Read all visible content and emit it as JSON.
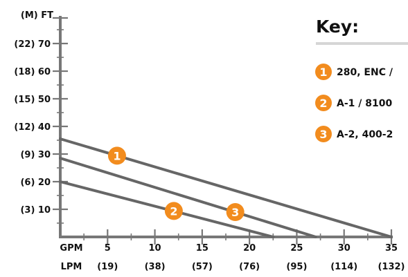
{
  "chart_data": {
    "type": "line",
    "x_axis": {
      "unit_primary": "GPM",
      "unit_secondary": "LPM",
      "range": [
        0,
        35
      ],
      "ticks": [
        {
          "gpm": "5",
          "lpm": "(19)"
        },
        {
          "gpm": "10",
          "lpm": "(38)"
        },
        {
          "gpm": "15",
          "lpm": "(57)"
        },
        {
          "gpm": "20",
          "lpm": "(76)"
        },
        {
          "gpm": "25",
          "lpm": "(95)"
        },
        {
          "gpm": "30",
          "lpm": "(114)"
        },
        {
          "gpm": "35",
          "lpm": "(132)"
        }
      ]
    },
    "y_axis": {
      "unit_label": "(M) FT",
      "range": [
        0,
        80
      ],
      "labeled_ticks": [
        {
          "value": 10,
          "label": "(3) 10"
        },
        {
          "value": 20,
          "label": "(6) 20"
        },
        {
          "value": 30,
          "label": "(9) 30"
        },
        {
          "value": 40,
          "label": "(12) 40"
        },
        {
          "value": 50,
          "label": "(15) 50"
        },
        {
          "value": 60,
          "label": "(18) 60"
        },
        {
          "value": 70,
          "label": "(22) 70"
        }
      ]
    },
    "grid": false,
    "legend_position": "right",
    "legend_title": "Key:",
    "series": [
      {
        "marker": "1",
        "name": "280, ENC /",
        "x": [
          0,
          35
        ],
        "y": [
          35.5,
          0
        ],
        "marker_at": [
          6,
          29.4
        ]
      },
      {
        "marker": "2",
        "name": "A-1 / 8100",
        "x": [
          0,
          22.5
        ],
        "y": [
          20,
          0
        ],
        "marker_at": [
          12,
          9.4
        ]
      },
      {
        "marker": "3",
        "name": "A-2, 400-2",
        "x": [
          0,
          27
        ],
        "y": [
          28.5,
          0
        ],
        "marker_at": [
          18.5,
          9
        ]
      }
    ],
    "colors": {
      "axis": "#777777",
      "series_line": "#666666",
      "marker": "#f28c1e",
      "key_rule": "#d6d6d6"
    }
  }
}
